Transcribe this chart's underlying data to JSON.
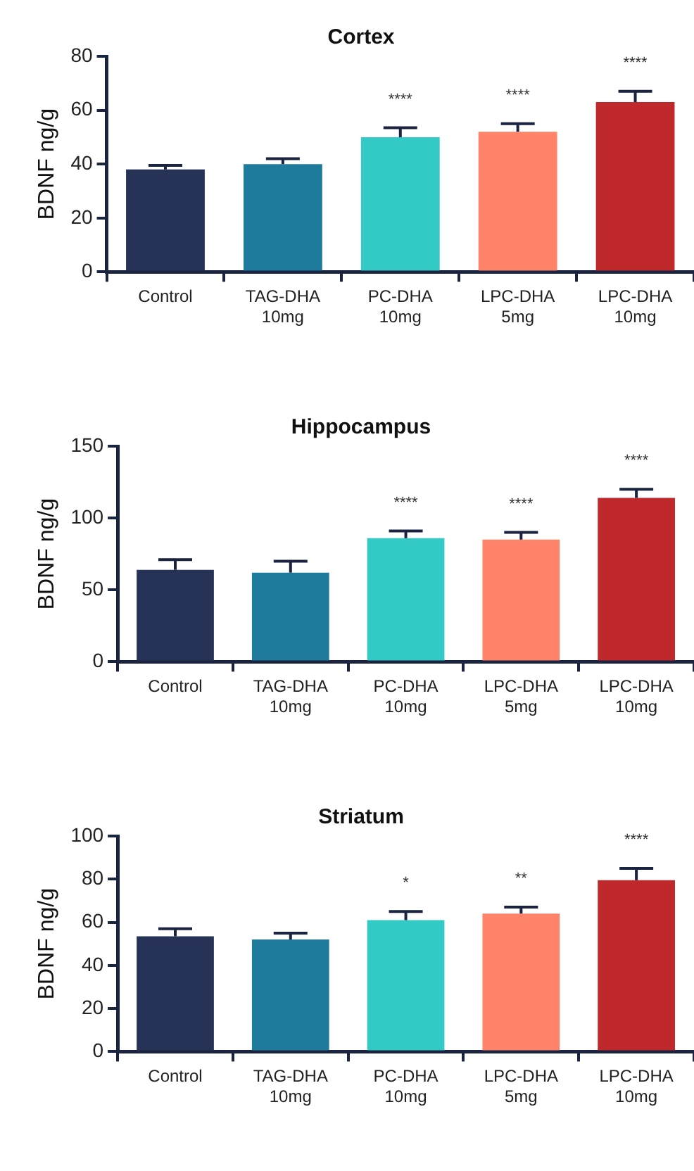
{
  "chart_data": [
    {
      "type": "bar",
      "title": "Cortex",
      "ylabel": "BDNF ng/g",
      "categories": [
        "Control",
        "TAG-DHA 10mg",
        "PC-DHA 10mg",
        "LPC-DHA 5mg",
        "LPC-DHA 10mg"
      ],
      "values": [
        38,
        40,
        50,
        52,
        63
      ],
      "errors": [
        [
          38,
          39.5
        ],
        [
          40,
          42
        ],
        [
          50,
          53.5
        ],
        [
          52,
          55
        ],
        [
          63,
          67
        ]
      ],
      "colors": [
        "#263357",
        "#1f7b9b",
        "#33c9c4",
        "#ff8369",
        "#c0292c"
      ],
      "ylim": [
        0,
        80
      ],
      "yticks": [
        0,
        20,
        40,
        60,
        80
      ],
      "grid": false,
      "legend": false,
      "annotations": [
        {
          "text": "****",
          "x": "PC-DHA 10mg",
          "y": 50
        },
        {
          "text": "****",
          "x": "LPC-DHA 5mg",
          "y": 52
        },
        {
          "text": "****",
          "x": "LPC-DHA 10mg",
          "y": 63
        }
      ]
    },
    {
      "type": "bar",
      "title": "Hippocampus",
      "ylabel": "BDNF ng/g",
      "categories": [
        "Control",
        "TAG-DHA 10mg",
        "PC-DHA 10mg",
        "LPC-DHA 5mg",
        "LPC-DHA 10mg"
      ],
      "values": [
        64,
        62,
        86,
        85,
        114
      ],
      "errors": [
        [
          64,
          71
        ],
        [
          62,
          70
        ],
        [
          86,
          91
        ],
        [
          85,
          90
        ],
        [
          114,
          120
        ]
      ],
      "colors": [
        "#263357",
        "#1f7b9b",
        "#33c9c4",
        "#ff8369",
        "#c0292c"
      ],
      "ylim": [
        0,
        150
      ],
      "yticks": [
        0,
        50,
        100,
        150
      ],
      "grid": false,
      "legend": false,
      "annotations": [
        {
          "text": "****",
          "x": "PC-DHA 10mg",
          "y": 86
        },
        {
          "text": "****",
          "x": "LPC-DHA 5mg",
          "y": 85
        },
        {
          "text": "****",
          "x": "LPC-DHA 10mg",
          "y": 114
        }
      ]
    },
    {
      "type": "bar",
      "title": "Striatum",
      "ylabel": "BDNF ng/g",
      "categories": [
        "Control",
        "TAG-DHA 10mg",
        "PC-DHA 10mg",
        "LPC-DHA 5mg",
        "LPC-DHA 10mg"
      ],
      "values": [
        53.5,
        52,
        61,
        64,
        79.5
      ],
      "errors": [
        [
          53.5,
          57
        ],
        [
          52,
          55
        ],
        [
          61,
          65
        ],
        [
          64,
          67
        ],
        [
          79.5,
          85
        ]
      ],
      "colors": [
        "#263357",
        "#1f7b9b",
        "#33c9c4",
        "#ff8369",
        "#c0292c"
      ],
      "ylim": [
        0,
        100
      ],
      "yticks": [
        0,
        20,
        40,
        60,
        80,
        100
      ],
      "grid": false,
      "legend": false,
      "annotations": [
        {
          "text": "*",
          "x": "PC-DHA 10mg",
          "y": 61
        },
        {
          "text": "**",
          "x": "LPC-DHA 5mg",
          "y": 64
        },
        {
          "text": "****",
          "x": "LPC-DHA 10mg",
          "y": 79.5
        }
      ]
    }
  ]
}
